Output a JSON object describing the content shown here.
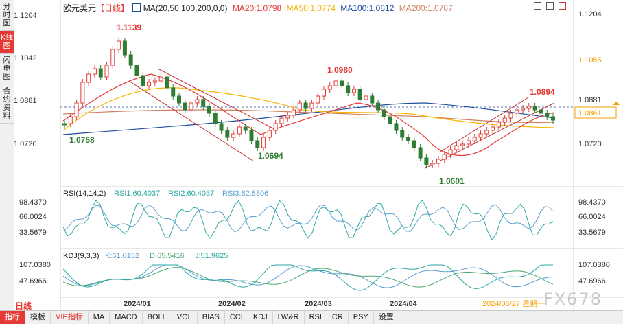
{
  "sidebar": [
    {
      "label": "分时图",
      "active": false
    },
    {
      "label": "K线图",
      "active": true
    },
    {
      "label": "闪电图",
      "active": false
    },
    {
      "label": "合约资料",
      "active": false
    }
  ],
  "header": {
    "symbol": "欧元美元",
    "period": "【日线】",
    "ma_label": "MA(20,50,100,200,0,0)",
    "ma20": "MA20:1.0798",
    "ma50": "MA50:1.0774",
    "ma100": "MA100:1.0812",
    "ma200": "MA200:1.0787"
  },
  "colors": {
    "up": "#e53935",
    "down": "#2e7d32",
    "ma20": "#e53935",
    "ma50": "#f5b400",
    "ma100": "#1f4e9c",
    "ma200": "#d08060",
    "rsi1": "#2aa7a0",
    "rsi2": "#2aa7a0",
    "rsi3": "#5aa0d0",
    "k": "#5a9bd5",
    "d": "#4aa870",
    "j": "#2aa7a0"
  },
  "price_axis": {
    "left": [
      "1.1204",
      "1.1042",
      "1.0881",
      "1.0720"
    ],
    "right": [
      "1.1204",
      "1.1055",
      "1.0881",
      "1.0861",
      "1.0720"
    ],
    "current": "1.0861"
  },
  "annotations": {
    "high1": "1.1139",
    "low1": "1.0758",
    "high2": "1.0980",
    "low2": "1.0694",
    "low3": "1.0601",
    "high3": "1.0894"
  },
  "rsi": {
    "label": "RSI(14,14,2)",
    "rsi1": "RSI1:60.4037",
    "rsi2": "RSI2:60.4037",
    "rsi3": "RSI3:82.8306",
    "ticks": [
      "98.4370",
      "66.0024",
      "33.5679"
    ]
  },
  "kdj": {
    "label": "KDJ(9,3,3)",
    "k": "K:61.0152",
    "d": "D:65.5416",
    "j": "J:51.9625",
    "ticks": [
      "107.0380",
      "47.6966"
    ]
  },
  "dates": [
    "2024/01",
    "2024/02",
    "2024/03",
    "2024/04"
  ],
  "last_date": "2024/05/27 星期一",
  "period_label": "日线",
  "bottom_tabs": [
    {
      "label": "指标",
      "active": true
    },
    {
      "label": "模板"
    },
    {
      "label": "VIP指标",
      "vip": true
    },
    {
      "label": "MA"
    },
    {
      "label": "MACD"
    },
    {
      "label": "BOLL"
    },
    {
      "label": "VOL"
    },
    {
      "label": "BIAS"
    },
    {
      "label": "CCI"
    },
    {
      "label": "KDJ"
    },
    {
      "label": "LW&R"
    },
    {
      "label": "RSI"
    },
    {
      "label": "CR"
    },
    {
      "label": "PSY"
    },
    {
      "label": "设置"
    }
  ],
  "watermark": "FX678"
}
